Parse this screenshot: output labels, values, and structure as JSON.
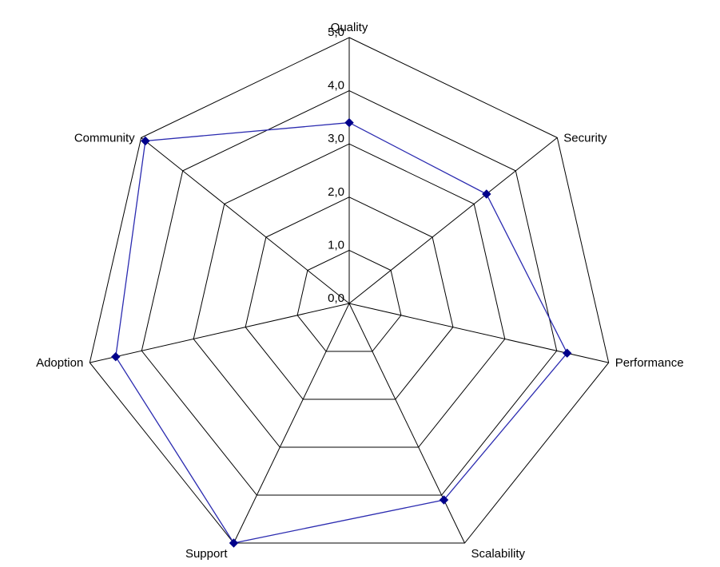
{
  "chart_data": {
    "type": "radar",
    "categories": [
      "Quality",
      "Security",
      "Performance",
      "Scalability",
      "Support",
      "Adoption",
      "Community"
    ],
    "series": [
      {
        "values": [
          3.4,
          3.3,
          4.2,
          4.1,
          5.0,
          4.5,
          4.9
        ]
      }
    ],
    "rlim": [
      0,
      5
    ],
    "ticks": [
      "0,0",
      "1,0",
      "2,0",
      "3,0",
      "4,0",
      "5,0"
    ],
    "grid": true,
    "legend": "none",
    "colors": {
      "series": "#2b2bb0",
      "marker": "#00008b",
      "grid": "#000000"
    }
  }
}
